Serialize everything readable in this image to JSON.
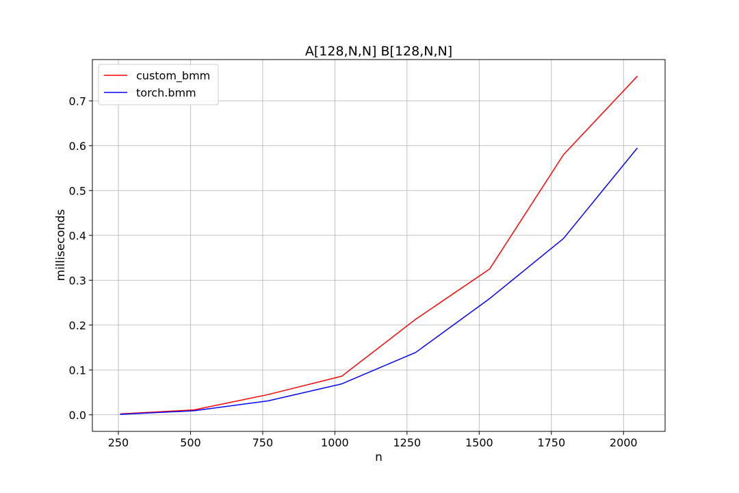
{
  "chart_data": {
    "type": "line",
    "title": "A[128,N,N] B[128,N,N]",
    "xlabel": "n",
    "ylabel": "milliseconds",
    "x": [
      256,
      512,
      768,
      1024,
      1280,
      1536,
      1792,
      2048
    ],
    "xlim": [
      160,
      2144
    ],
    "ylim": [
      -0.037,
      0.792
    ],
    "xticks": [
      250,
      500,
      750,
      1000,
      1250,
      1500,
      1750,
      2000
    ],
    "xtick_labels": [
      "250",
      "500",
      "750",
      "1000",
      "1250",
      "1500",
      "1750",
      "2000"
    ],
    "yticks": [
      0.0,
      0.1,
      0.2,
      0.3,
      0.4,
      0.5,
      0.6,
      0.7
    ],
    "ytick_labels": [
      "0.0",
      "0.1",
      "0.2",
      "0.3",
      "0.4",
      "0.5",
      "0.6",
      "0.7"
    ],
    "grid": true,
    "legend_position": "top-left",
    "series": [
      {
        "name": "custom_bmm",
        "color": "#ff0000",
        "values": [
          0.002,
          0.011,
          0.045,
          0.086,
          0.213,
          0.325,
          0.58,
          0.755
        ]
      },
      {
        "name": "torch.bmm",
        "color": "#0000ff",
        "values": [
          0.001,
          0.009,
          0.031,
          0.069,
          0.139,
          0.259,
          0.393,
          0.595
        ]
      }
    ]
  }
}
